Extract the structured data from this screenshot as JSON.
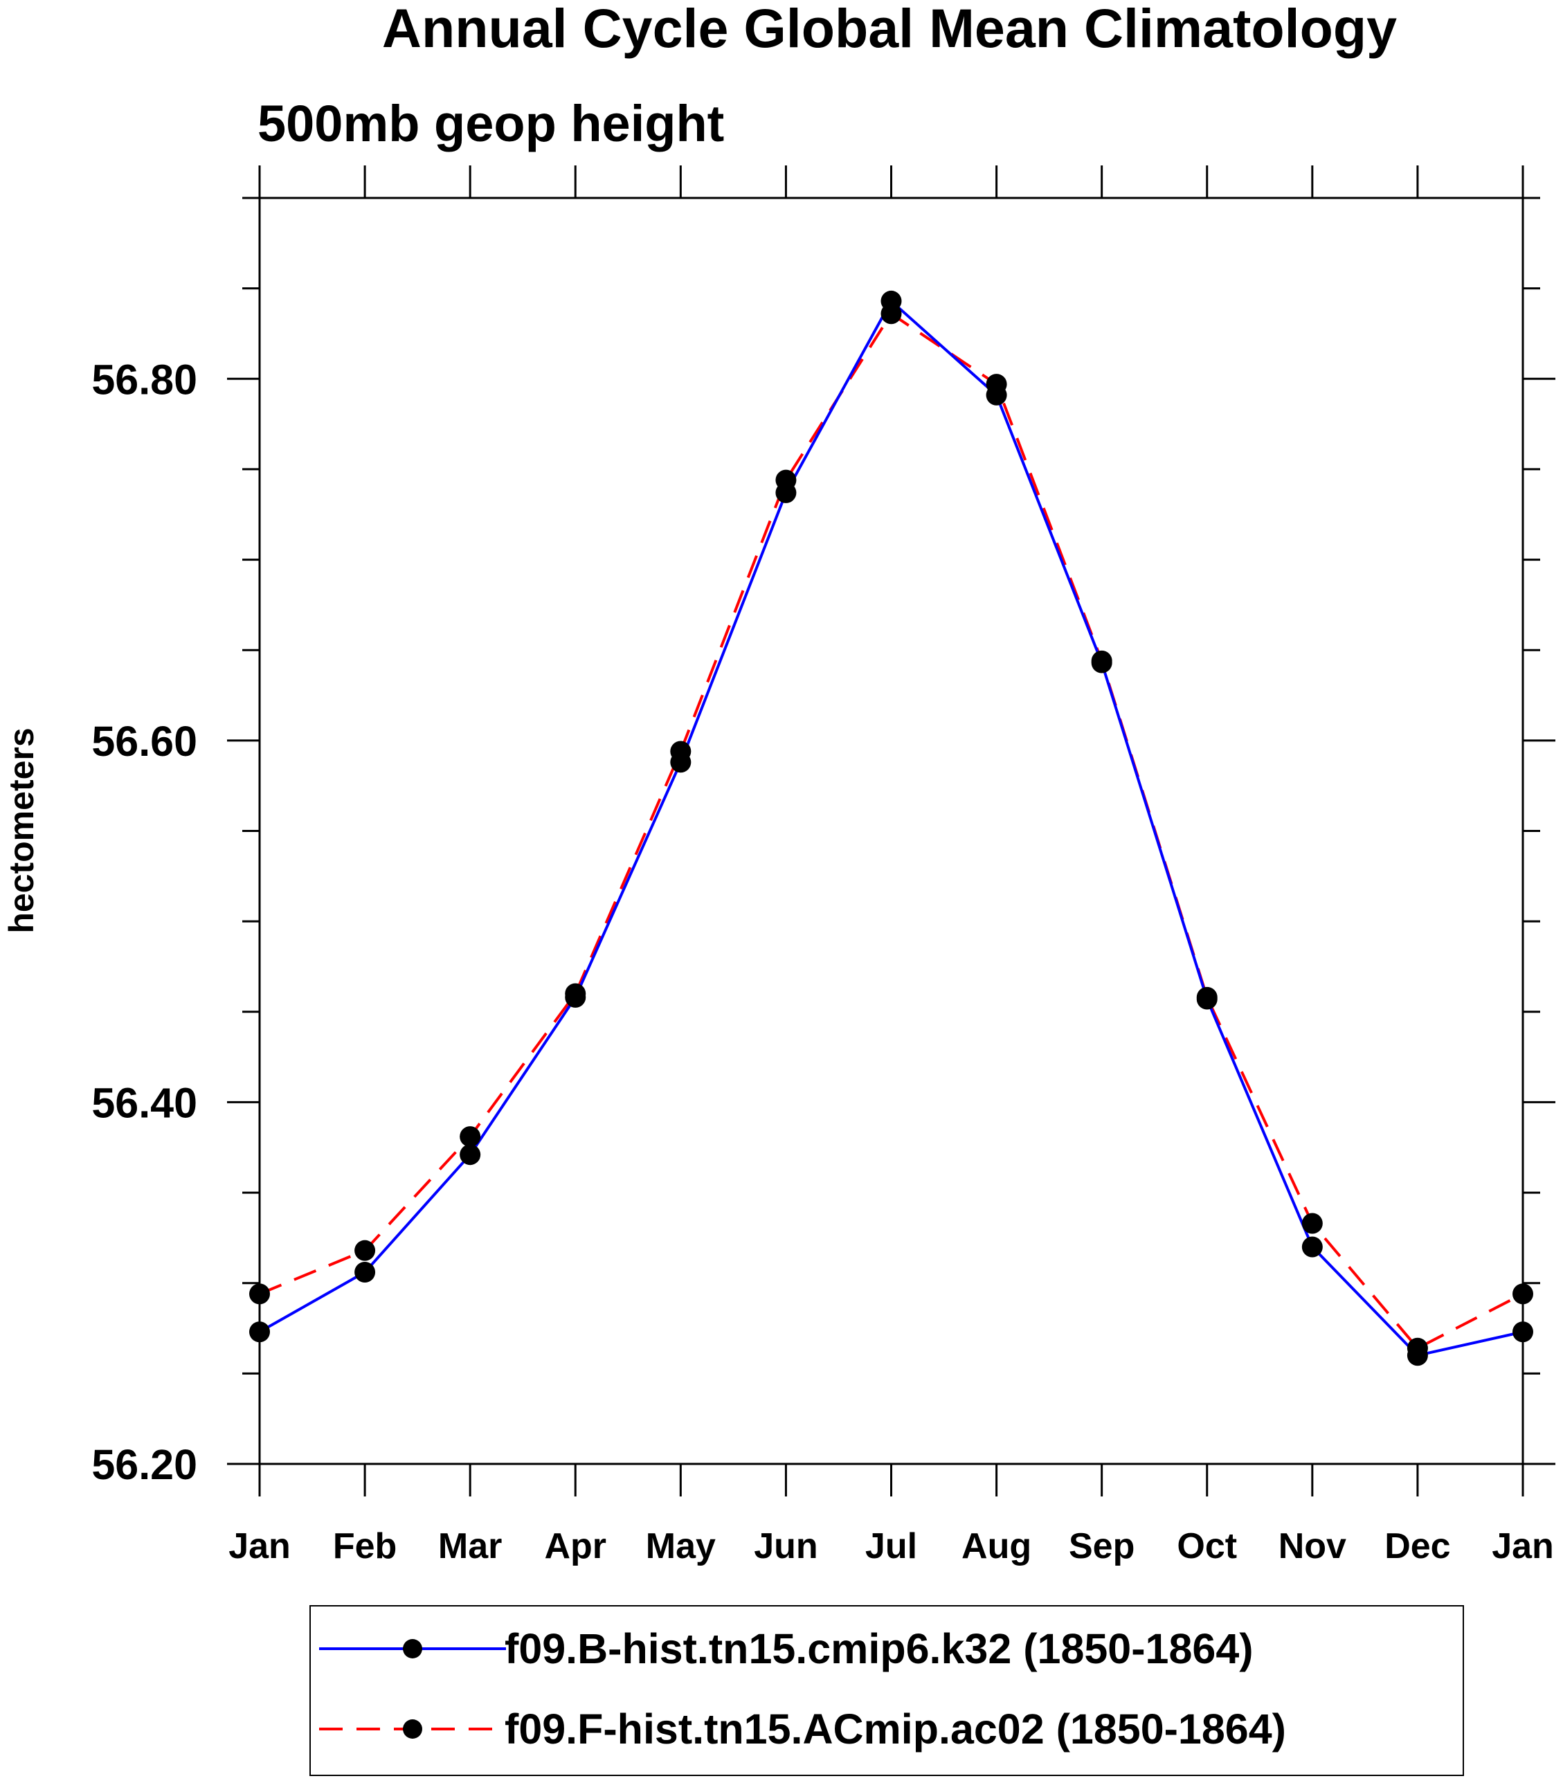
{
  "chart_data": {
    "type": "line",
    "title": "Annual Cycle Global Mean Climatology",
    "subtitle": "500mb geop height",
    "xlabel": "",
    "ylabel": "hectometers",
    "categories": [
      "Jan",
      "Feb",
      "Mar",
      "Apr",
      "May",
      "Jun",
      "Jul",
      "Aug",
      "Sep",
      "Oct",
      "Nov",
      "Dec",
      "Jan"
    ],
    "ylim": [
      56.2,
      56.9
    ],
    "yticks": [
      {
        "value": 56.2,
        "label": "56.20"
      },
      {
        "value": 56.4,
        "label": "56.40"
      },
      {
        "value": 56.6,
        "label": "56.60"
      },
      {
        "value": 56.8,
        "label": "56.80"
      }
    ],
    "grid": false,
    "legend_position": "bottom",
    "series": [
      {
        "name": "f09.B-hist.tn15.cmip6.k32 (1850-1864)",
        "color": "#0000ff",
        "style": "solid",
        "marker": "filled-circle",
        "values": [
          56.273,
          56.306,
          56.371,
          56.458,
          56.588,
          56.737,
          56.843,
          56.791,
          56.643,
          56.457,
          56.32,
          56.26,
          56.273
        ]
      },
      {
        "name": "f09.F-hist.tn15.ACmip.ac02 (1850-1864)",
        "color": "#ff0000",
        "style": "dashed",
        "marker": "filled-circle",
        "values": [
          56.294,
          56.318,
          56.381,
          56.46,
          56.594,
          56.744,
          56.836,
          56.797,
          56.644,
          56.458,
          56.333,
          56.264,
          56.294
        ]
      }
    ]
  }
}
